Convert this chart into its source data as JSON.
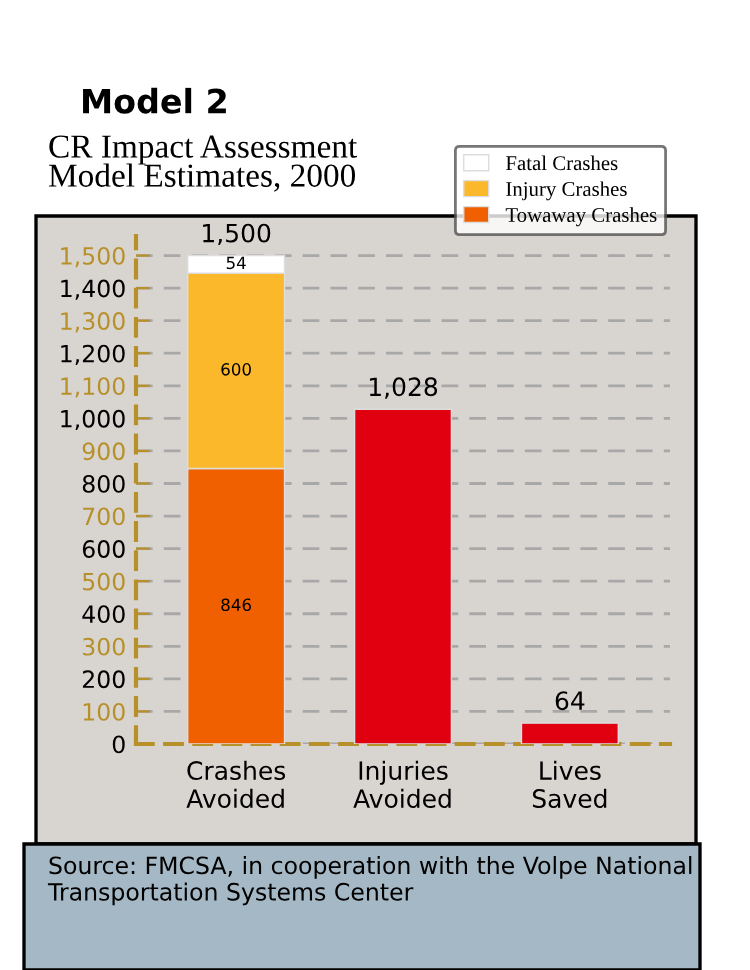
{
  "chart_data": {
    "type": "bar",
    "stacked": true,
    "title": "Model 2",
    "subtitle": "CR Impact Assessment\nModel Estimates, 2000",
    "categories": [
      "Crashes\nAvoided",
      "Injuries\nAvoided",
      "Lives\nSaved"
    ],
    "series": [
      {
        "name": "Towaway Crashes",
        "color": "#f06000",
        "values": [
          846,
          null,
          null
        ],
        "value_labels": [
          "846",
          null,
          null
        ]
      },
      {
        "name": "Injury Crashes",
        "color": "#fbb82a",
        "values": [
          600,
          null,
          null
        ],
        "value_labels": [
          "600",
          null,
          null
        ]
      },
      {
        "name": "Fatal Crashes",
        "color": "#ffffff",
        "values": [
          54,
          null,
          null
        ],
        "value_labels": [
          "54",
          null,
          null
        ]
      },
      {
        "color": "#e00010",
        "values": [
          null,
          1028,
          64
        ]
      }
    ],
    "totals": [
      "1,500",
      "1,028",
      "64"
    ],
    "ylim": [
      0,
      1560
    ],
    "yticks": [
      0,
      100,
      200,
      300,
      400,
      500,
      600,
      700,
      800,
      900,
      {
        "value": 1000,
        "label": "1,000"
      },
      {
        "value": 1100,
        "label": "1,100"
      },
      {
        "value": 1200,
        "label": "1,200"
      },
      {
        "value": 1300,
        "label": "1,300"
      },
      {
        "value": 1400,
        "label": "1,400"
      },
      {
        "value": 1500,
        "label": "1,500"
      }
    ],
    "grid": "y",
    "legend": "top right",
    "annotations": [
      "Source: FMCSA, in cooperation with the Volpe National Transportation Systems Center"
    ]
  }
}
